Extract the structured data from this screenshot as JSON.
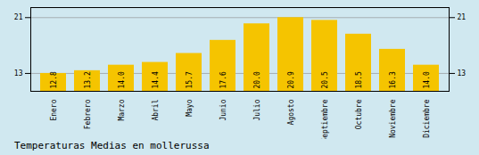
{
  "chart_data": {
    "type": "bar",
    "title": "Temperaturas Medias en mollerussa",
    "categories": [
      "Enero",
      "Febrero",
      "Marzo",
      "Abril",
      "Mayo",
      "Junio",
      "Julio",
      "Agosto",
      "Septiembre",
      "Octubre",
      "Noviembre",
      "Diciembre"
    ],
    "values": [
      12.8,
      13.2,
      14.0,
      14.4,
      15.7,
      17.6,
      20.0,
      20.9,
      20.5,
      18.5,
      16.3,
      14.0
    ],
    "value_labels": [
      "12.8",
      "13.2",
      "14.0",
      "14.4",
      "15.7",
      "17.6",
      "20.0",
      "20.9",
      "20.5",
      "18.5",
      "16.3",
      "14.0"
    ],
    "color": "#F5C400",
    "ylim": [
      10.208,
      22.358
    ],
    "yticks": [
      12.8,
      20.9
    ],
    "grid": true,
    "data_labels": true
  }
}
